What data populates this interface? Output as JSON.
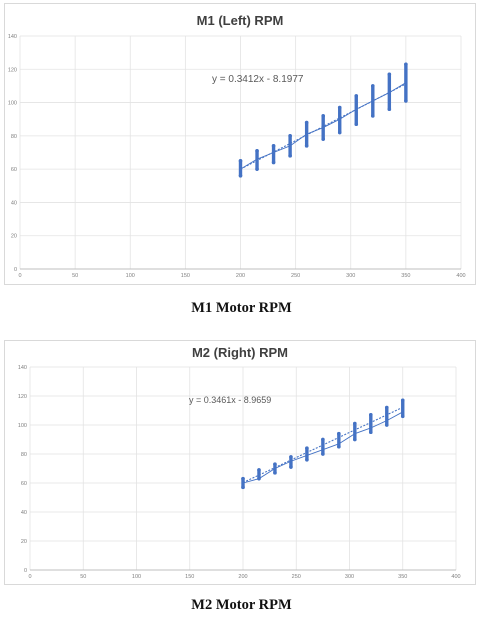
{
  "chart_data": [
    {
      "type": "scatter",
      "title": "M1 (Left) RPM",
      "caption": "M1 Motor RPM",
      "xlim": [
        0,
        400
      ],
      "ylim": [
        0,
        140
      ],
      "x_ticks": [
        "0",
        "50",
        "100",
        "150",
        "200",
        "250",
        "300",
        "350",
        "400"
      ],
      "y_ticks": [
        "0",
        "20",
        "40",
        "60",
        "80",
        "100",
        "120",
        "140"
      ],
      "grid": true,
      "x_levels": [
        200,
        215,
        230,
        245,
        260,
        275,
        290,
        305,
        320,
        335,
        350
      ],
      "y_ranges": [
        [
          56,
          65
        ],
        [
          60,
          71
        ],
        [
          64,
          74
        ],
        [
          68,
          80
        ],
        [
          74,
          88
        ],
        [
          78,
          92
        ],
        [
          82,
          97
        ],
        [
          87,
          104
        ],
        [
          92,
          110
        ],
        [
          96,
          117
        ],
        [
          101,
          123
        ]
      ],
      "mean_series": [
        [
          200,
          60
        ],
        [
          215,
          66
        ],
        [
          230,
          70
        ],
        [
          245,
          74
        ],
        [
          260,
          81
        ],
        [
          275,
          85
        ],
        [
          290,
          90
        ],
        [
          305,
          96
        ],
        [
          320,
          101
        ],
        [
          335,
          106
        ],
        [
          350,
          112
        ]
      ],
      "trendline": {
        "slope": 0.3412,
        "intercept": -8.1977,
        "label": "y = 0.3412x - 8.1977"
      },
      "series_color": "#4472c4"
    },
    {
      "type": "scatter",
      "title": "M2 (Right) RPM",
      "caption": "M2 Motor RPM",
      "xlim": [
        0,
        400
      ],
      "ylim": [
        0,
        140
      ],
      "x_ticks": [
        "0",
        "50",
        "100",
        "150",
        "200",
        "250",
        "300",
        "350",
        "400"
      ],
      "y_ticks": [
        "0",
        "20",
        "40",
        "60",
        "80",
        "100",
        "120",
        "140"
      ],
      "grid": true,
      "x_levels": [
        200,
        215,
        230,
        245,
        260,
        275,
        290,
        305,
        320,
        335,
        350
      ],
      "y_ranges": [
        [
          57,
          63
        ],
        [
          63,
          69
        ],
        [
          67,
          73
        ],
        [
          71,
          78
        ],
        [
          76,
          84
        ],
        [
          80,
          90
        ],
        [
          85,
          94
        ],
        [
          90,
          101
        ],
        [
          95,
          107
        ],
        [
          100,
          112
        ],
        [
          106,
          117
        ]
      ],
      "mean_series": [
        [
          200,
          60
        ],
        [
          215,
          63
        ],
        [
          230,
          70
        ],
        [
          245,
          75
        ],
        [
          260,
          79
        ],
        [
          275,
          83
        ],
        [
          290,
          87
        ],
        [
          305,
          94
        ],
        [
          320,
          98
        ],
        [
          335,
          103
        ],
        [
          350,
          109
        ]
      ],
      "trendline": {
        "slope": 0.3461,
        "intercept": -8.9659,
        "label": "y = 0.3461x - 8.9659"
      },
      "series_color": "#4472c4"
    }
  ]
}
